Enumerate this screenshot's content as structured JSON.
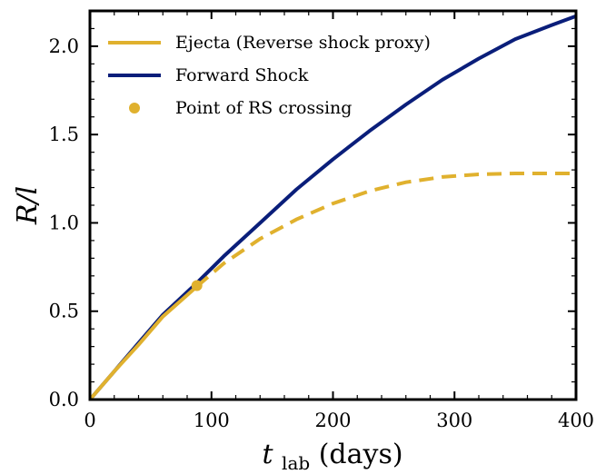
{
  "chart_data": {
    "type": "line",
    "xlabel_main": "t",
    "xlabel_sub": "lab",
    "xlabel_unit": " (days)",
    "ylabel": "R/l",
    "xlim": [
      0,
      400
    ],
    "ylim": [
      0,
      2.2
    ],
    "grid": false,
    "legend_position": "top-left",
    "x_ticks": [
      0,
      100,
      200,
      300,
      400
    ],
    "x_tick_labels": [
      "0",
      "100",
      "200",
      "300",
      "400"
    ],
    "y_ticks": [
      0.0,
      0.5,
      1.0,
      1.5,
      2.0
    ],
    "y_tick_labels": [
      "0.0",
      "0.5",
      "1.0",
      "1.5",
      "2.0"
    ],
    "series": [
      {
        "name": "Ejecta (Reverse shock proxy)",
        "color": "#e0b12e",
        "style": "solid-then-dashed",
        "x": [
          0,
          20,
          40,
          60,
          88,
          110,
          140,
          170,
          200,
          230,
          260,
          290,
          320,
          350,
          380,
          400
        ],
        "y": [
          0.0,
          0.16,
          0.31,
          0.47,
          0.64,
          0.77,
          0.91,
          1.02,
          1.11,
          1.18,
          1.23,
          1.26,
          1.275,
          1.28,
          1.28,
          1.28
        ]
      },
      {
        "name": "Forward Shock",
        "color": "#0a1e7a",
        "style": "solid",
        "x": [
          0,
          20,
          40,
          60,
          88,
          110,
          140,
          170,
          200,
          230,
          260,
          290,
          320,
          350,
          380,
          400
        ],
        "y": [
          0.0,
          0.16,
          0.32,
          0.48,
          0.66,
          0.81,
          1.0,
          1.19,
          1.36,
          1.52,
          1.67,
          1.81,
          1.93,
          2.04,
          2.12,
          2.17
        ]
      }
    ],
    "marker": {
      "name": "Point of RS crossing",
      "color": "#e0b12e",
      "x": 88,
      "y": 0.645
    },
    "rs_crossing_x": 88
  }
}
